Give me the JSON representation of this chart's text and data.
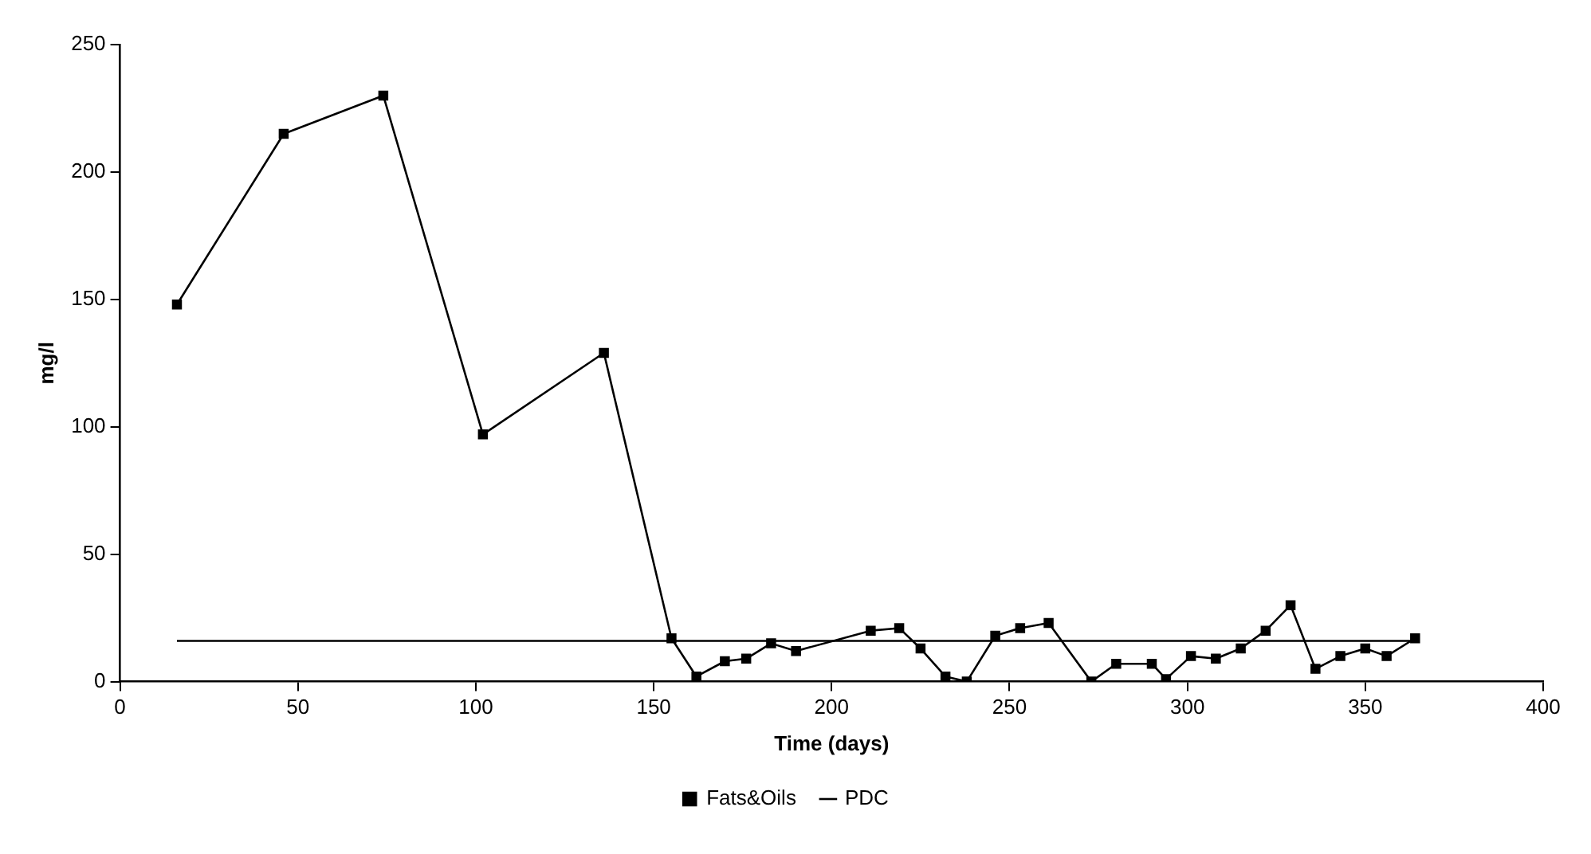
{
  "chart_data": {
    "type": "line",
    "xlabel": "Time (days)",
    "ylabel": "mg/l",
    "xlim": [
      0,
      400
    ],
    "xticks": [
      0,
      50,
      100,
      150,
      200,
      250,
      300,
      350,
      400
    ],
    "ylim": [
      0,
      250
    ],
    "yticks": [
      0,
      50,
      100,
      150,
      200,
      250
    ],
    "grid": false,
    "legend": "bottom",
    "series": [
      {
        "name": "Fats&Oils",
        "color": "#000000",
        "marker": "square",
        "x": [
          16,
          46,
          74,
          102,
          136,
          155,
          162,
          170,
          176,
          183,
          190,
          211,
          219,
          225,
          232,
          238,
          246,
          253,
          261,
          273,
          280,
          290,
          294,
          301,
          308,
          315,
          322,
          329,
          336,
          343,
          350,
          356,
          364
        ],
        "values": [
          148,
          215,
          230,
          97,
          129,
          17,
          2,
          8,
          9,
          15,
          12,
          20,
          21,
          13,
          2,
          0,
          18,
          21,
          23,
          0,
          7,
          7,
          1,
          10,
          9,
          13,
          20,
          30,
          5,
          10,
          13,
          10,
          17
        ]
      },
      {
        "name": "PDC",
        "color": "#000000",
        "marker": "none",
        "x": [
          16,
          364
        ],
        "values": [
          16,
          16
        ]
      }
    ]
  }
}
